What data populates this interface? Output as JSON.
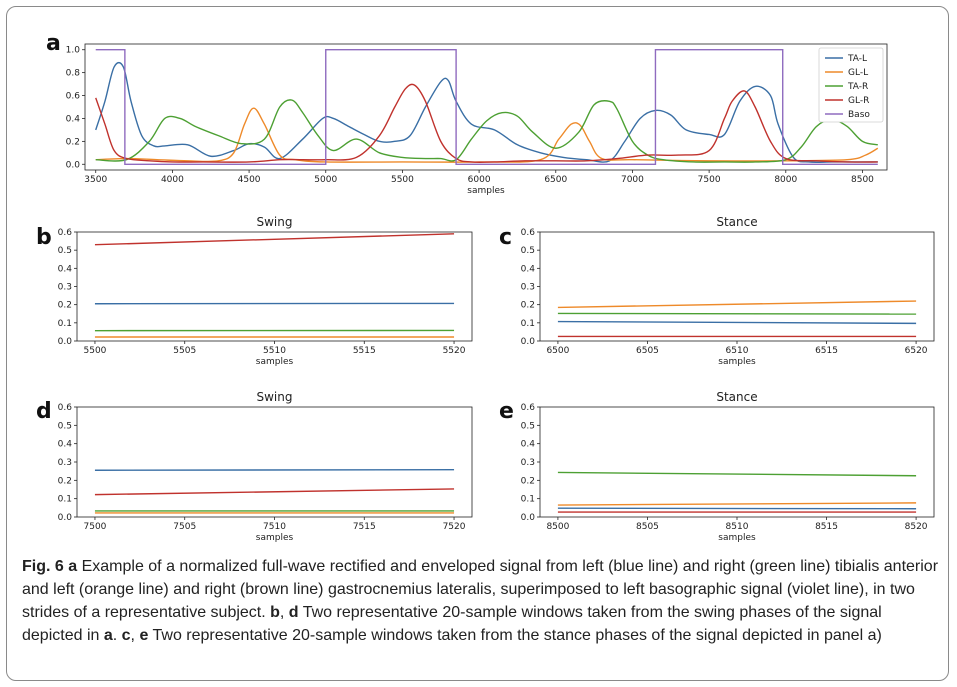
{
  "colors": {
    "TA-L": "#3a6fa5",
    "GL-L": "#ee8a2a",
    "TA-R": "#4da033",
    "GL-R": "#c0322d",
    "Baso": "#8f6bbf"
  },
  "chart_data": [
    {
      "panel": "a",
      "type": "line",
      "title": "",
      "xlabel": "samples",
      "ylabel": "",
      "xlim": [
        3430,
        8660
      ],
      "ylim": [
        -0.05,
        1.05
      ],
      "xticks": [
        3500,
        4000,
        4500,
        5000,
        5500,
        6000,
        6500,
        7000,
        7500,
        8000,
        8500
      ],
      "yticks": [
        0.0,
        0.2,
        0.4,
        0.6,
        0.8,
        1.0
      ],
      "legend": {
        "placement": "top-right",
        "entries": [
          "TA-L",
          "GL-L",
          "TA-R",
          "GL-R",
          "Baso"
        ]
      },
      "series": [
        {
          "name": "TA-L",
          "x": [
            3500,
            3560,
            3620,
            3680,
            3730,
            3800,
            3880,
            3950,
            4100,
            4250,
            4400,
            4500,
            4600,
            4700,
            4850,
            4980,
            5050,
            5150,
            5250,
            5350,
            5450,
            5550,
            5650,
            5750,
            5800,
            5850,
            5950,
            6100,
            6250,
            6400,
            6550,
            6700,
            6850,
            6950,
            7050,
            7150,
            7250,
            7350,
            7500,
            7600,
            7700,
            7800,
            7900,
            7950,
            8050,
            8150,
            8300,
            8450,
            8600
          ],
          "y": [
            0.3,
            0.55,
            0.85,
            0.85,
            0.55,
            0.25,
            0.16,
            0.16,
            0.17,
            0.07,
            0.12,
            0.18,
            0.15,
            0.05,
            0.22,
            0.4,
            0.4,
            0.33,
            0.26,
            0.2,
            0.2,
            0.25,
            0.5,
            0.72,
            0.73,
            0.55,
            0.35,
            0.3,
            0.17,
            0.1,
            0.06,
            0.04,
            0.03,
            0.2,
            0.4,
            0.47,
            0.43,
            0.3,
            0.26,
            0.26,
            0.55,
            0.68,
            0.6,
            0.35,
            0.06,
            0.02,
            0.02,
            0.02,
            0.02
          ]
        },
        {
          "name": "GL-L",
          "x": [
            3500,
            3700,
            3900,
            4100,
            4300,
            4400,
            4470,
            4530,
            4600,
            4700,
            4800,
            5000,
            5500,
            6000,
            6400,
            6520,
            6600,
            6660,
            6720,
            6800,
            7000,
            7500,
            8000,
            8400,
            8520,
            8600
          ],
          "y": [
            0.04,
            0.05,
            0.04,
            0.03,
            0.03,
            0.1,
            0.35,
            0.49,
            0.35,
            0.08,
            0.04,
            0.02,
            0.02,
            0.02,
            0.04,
            0.22,
            0.35,
            0.34,
            0.2,
            0.05,
            0.04,
            0.03,
            0.03,
            0.04,
            0.08,
            0.14
          ]
        },
        {
          "name": "TA-R",
          "x": [
            3500,
            3700,
            3850,
            3950,
            4050,
            4150,
            4300,
            4450,
            4600,
            4700,
            4780,
            4850,
            4950,
            5050,
            5200,
            5350,
            5500,
            5650,
            5750,
            5850,
            5950,
            6050,
            6150,
            6250,
            6350,
            6500,
            6650,
            6750,
            6850,
            6900,
            7000,
            7100,
            7200,
            7400,
            7600,
            7800,
            8000,
            8100,
            8200,
            8300,
            8400,
            8500,
            8600
          ],
          "y": [
            0.04,
            0.04,
            0.2,
            0.4,
            0.4,
            0.33,
            0.25,
            0.18,
            0.22,
            0.5,
            0.56,
            0.45,
            0.25,
            0.12,
            0.22,
            0.1,
            0.06,
            0.05,
            0.05,
            0.04,
            0.22,
            0.38,
            0.45,
            0.42,
            0.28,
            0.14,
            0.28,
            0.52,
            0.55,
            0.48,
            0.2,
            0.08,
            0.04,
            0.02,
            0.02,
            0.02,
            0.04,
            0.15,
            0.33,
            0.39,
            0.33,
            0.2,
            0.17
          ]
        },
        {
          "name": "GL-R",
          "x": [
            3500,
            3560,
            3620,
            3700,
            3850,
            4000,
            4200,
            4500,
            4700,
            4850,
            5000,
            5200,
            5350,
            5450,
            5520,
            5580,
            5650,
            5750,
            5850,
            5950,
            6100,
            6300,
            6500,
            6700,
            6900,
            7100,
            7300,
            7500,
            7600,
            7650,
            7730,
            7800,
            7900,
            8000,
            8200,
            8400,
            8600
          ],
          "y": [
            0.58,
            0.35,
            0.12,
            0.05,
            0.03,
            0.02,
            0.02,
            0.02,
            0.04,
            0.04,
            0.04,
            0.06,
            0.25,
            0.5,
            0.66,
            0.69,
            0.55,
            0.2,
            0.05,
            0.02,
            0.02,
            0.03,
            0.03,
            0.03,
            0.05,
            0.08,
            0.08,
            0.12,
            0.4,
            0.55,
            0.64,
            0.5,
            0.2,
            0.05,
            0.03,
            0.02,
            0.02
          ]
        },
        {
          "name": "Baso",
          "x": [
            3500,
            3690,
            3690,
            5000,
            5000,
            5850,
            5850,
            7150,
            7150,
            7980,
            7980,
            8600
          ],
          "y": [
            1,
            1,
            0,
            0,
            1,
            1,
            0,
            0,
            1,
            1,
            0,
            0
          ]
        }
      ]
    },
    {
      "panel": "b",
      "type": "line",
      "title": "Swing",
      "xlabel": "samples",
      "ylabel": "",
      "xlim": [
        5499,
        5521
      ],
      "ylim": [
        0,
        0.6
      ],
      "xticks": [
        5500,
        5505,
        5510,
        5515,
        5520
      ],
      "yticks": [
        0.0,
        0.1,
        0.2,
        0.3,
        0.4,
        0.5,
        0.6
      ],
      "series": [
        {
          "name": "GL-R",
          "x": [
            5500,
            5520
          ],
          "y": [
            0.53,
            0.59
          ]
        },
        {
          "name": "TA-L",
          "x": [
            5500,
            5520
          ],
          "y": [
            0.205,
            0.207
          ]
        },
        {
          "name": "TA-R",
          "x": [
            5500,
            5520
          ],
          "y": [
            0.057,
            0.058
          ]
        },
        {
          "name": "GL-L",
          "x": [
            5500,
            5520
          ],
          "y": [
            0.022,
            0.022
          ]
        }
      ]
    },
    {
      "panel": "c",
      "type": "line",
      "title": "Stance",
      "xlabel": "samples",
      "ylabel": "",
      "xlim": [
        6499,
        6521
      ],
      "ylim": [
        0,
        0.6
      ],
      "xticks": [
        6500,
        6505,
        6510,
        6515,
        6520
      ],
      "yticks": [
        0.0,
        0.1,
        0.2,
        0.3,
        0.4,
        0.5,
        0.6
      ],
      "series": [
        {
          "name": "GL-L",
          "x": [
            6500,
            6520
          ],
          "y": [
            0.185,
            0.22
          ]
        },
        {
          "name": "TA-R",
          "x": [
            6500,
            6520
          ],
          "y": [
            0.152,
            0.148
          ]
        },
        {
          "name": "TA-L",
          "x": [
            6500,
            6520
          ],
          "y": [
            0.107,
            0.097
          ]
        },
        {
          "name": "GL-R",
          "x": [
            6500,
            6520
          ],
          "y": [
            0.025,
            0.025
          ]
        }
      ]
    },
    {
      "panel": "d",
      "type": "line",
      "title": "Swing",
      "xlabel": "samples",
      "ylabel": "",
      "xlim": [
        7499,
        7521
      ],
      "ylim": [
        0,
        0.6
      ],
      "xticks": [
        7500,
        7505,
        7510,
        7515,
        7520
      ],
      "yticks": [
        0.0,
        0.1,
        0.2,
        0.3,
        0.4,
        0.5,
        0.6
      ],
      "series": [
        {
          "name": "TA-L",
          "x": [
            7500,
            7520
          ],
          "y": [
            0.255,
            0.258
          ]
        },
        {
          "name": "GL-R",
          "x": [
            7500,
            7520
          ],
          "y": [
            0.122,
            0.153
          ]
        },
        {
          "name": "TA-R",
          "x": [
            7500,
            7520
          ],
          "y": [
            0.033,
            0.033
          ]
        },
        {
          "name": "GL-L",
          "x": [
            7500,
            7520
          ],
          "y": [
            0.022,
            0.022
          ]
        }
      ]
    },
    {
      "panel": "e",
      "type": "line",
      "title": "Stance",
      "xlabel": "samples",
      "ylabel": "",
      "xlim": [
        8499,
        8521
      ],
      "ylim": [
        0,
        0.6
      ],
      "xticks": [
        8500,
        8505,
        8510,
        8515,
        8520
      ],
      "yticks": [
        0.0,
        0.1,
        0.2,
        0.3,
        0.4,
        0.5,
        0.6
      ],
      "series": [
        {
          "name": "TA-R",
          "x": [
            8500,
            8520
          ],
          "y": [
            0.243,
            0.225
          ]
        },
        {
          "name": "GL-L",
          "x": [
            8500,
            8520
          ],
          "y": [
            0.065,
            0.077
          ]
        },
        {
          "name": "TA-L",
          "x": [
            8500,
            8520
          ],
          "y": [
            0.048,
            0.045
          ]
        },
        {
          "name": "GL-R",
          "x": [
            8500,
            8520
          ],
          "y": [
            0.027,
            0.027
          ]
        }
      ]
    }
  ],
  "caption": {
    "fig_label": "Fig. 6",
    "parts": [
      {
        "text": " ",
        "bold": false
      },
      {
        "text": "a",
        "bold": true
      },
      {
        "text": " Example of a normalized full-wave rectified and enveloped signal from left (blue line) and right (green line) tibialis anterior and left (orange line) and right (brown line) gastrocnemius lateralis, superimposed to left basographic signal (violet line), in two strides of a representative subject. ",
        "bold": false
      },
      {
        "text": "b",
        "bold": true
      },
      {
        "text": ", ",
        "bold": false
      },
      {
        "text": "d",
        "bold": true
      },
      {
        "text": " Two representative 20-sample windows taken from the swing phases of the signal depicted in ",
        "bold": false
      },
      {
        "text": "a",
        "bold": true
      },
      {
        "text": ". ",
        "bold": false
      },
      {
        "text": "c",
        "bold": true
      },
      {
        "text": ", ",
        "bold": false
      },
      {
        "text": "e",
        "bold": true
      },
      {
        "text": " Two representative 20-sample windows taken from the stance phases of the signal depicted in panel a)",
        "bold": false
      }
    ]
  }
}
